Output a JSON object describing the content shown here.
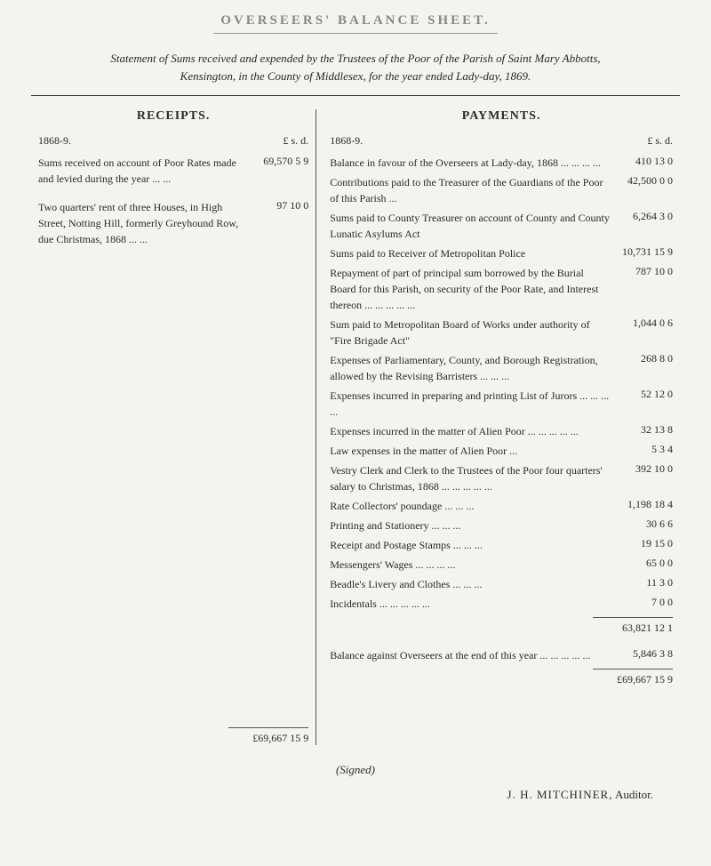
{
  "document": {
    "title": "OVERSEERS' BALANCE SHEET.",
    "statement_line1": "Statement of Sums received and expended by the Trustees of the Poor of the Parish of Saint Mary Abbotts,",
    "statement_line2": "Kensington, in the County of Middlesex, for the year ended Lady-day, 1869."
  },
  "receipts": {
    "title": "RECEIPTS.",
    "year": "1868-9.",
    "currency": "£ s. d.",
    "items": [
      {
        "label": "Sums received on account of Poor Rates made and levied during the year    ...    ...",
        "amount": "69,570  5  9"
      },
      {
        "label": "Two quarters' rent of three Houses, in High Street, Notting Hill, formerly Greyhound Row, due Christmas, 1868    ...    ...",
        "amount": "97 10  0"
      }
    ],
    "total": "£69,667 15  9"
  },
  "payments": {
    "title": "PAYMENTS.",
    "year": "1868-9.",
    "currency": "£ s. d.",
    "items": [
      {
        "label": "Balance in favour of the Overseers at Lady-day, 1868    ...    ...    ...    ...",
        "amount": "410 13  0"
      },
      {
        "label": "Contributions paid to the Treasurer of the Guardians of the Poor of this Parish ...",
        "amount": "42,500  0  0"
      },
      {
        "label": "Sums paid to County Treasurer on account of County and County Lunatic Asylums Act",
        "amount": "6,264  3  0"
      },
      {
        "label": "Sums paid to Receiver of Metropolitan Police",
        "amount": "10,731 15  9"
      },
      {
        "label": "Repayment of part of principal sum borrowed by the Burial Board for this Parish, on security of the Poor Rate, and Interest thereon    ...    ...    ...    ...    ...",
        "amount": "787 10  0"
      },
      {
        "label": "Sum paid to Metropolitan Board of Works under authority of \"Fire Brigade Act\"",
        "amount": "1,044  0  6"
      },
      {
        "label": "Expenses of Parliamentary, County, and Borough Registration, allowed by the Revising Barristers    ...    ...    ...",
        "amount": "268  8  0"
      },
      {
        "label": "Expenses incurred in preparing and printing List of Jurors    ...    ...    ...    ...",
        "amount": "52 12  0"
      },
      {
        "label": "Expenses incurred in the matter of Alien Poor    ...    ...    ...    ...    ...",
        "amount": "32 13  8"
      },
      {
        "label": "Law expenses in the matter of Alien Poor ...",
        "amount": "5  3  4"
      },
      {
        "label": "Vestry Clerk and Clerk to the Trustees of the Poor four quarters' salary to Christmas, 1868    ...    ...    ...    ...    ...",
        "amount": "392 10  0"
      },
      {
        "label": "Rate Collectors' poundage    ...    ...    ...",
        "amount": "1,198 18  4"
      },
      {
        "label": "Printing and Stationery    ...    ...    ...",
        "amount": "30  6  6"
      },
      {
        "label": "Receipt and Postage Stamps ...    ...    ...",
        "amount": "19 15  0"
      },
      {
        "label": "Messengers' Wages    ...    ...    ...    ...",
        "amount": "65  0  0"
      },
      {
        "label": "Beadle's Livery and Clothes ...    ...    ...",
        "amount": "11  3  0"
      },
      {
        "label": "Incidentals    ...    ...    ...    ...    ...",
        "amount": "7  0  0"
      }
    ],
    "subtotal": "63,821 12  1",
    "balance_label": "Balance against Overseers at the end of this year    ...    ...    ...    ...    ...",
    "balance_amount": "5,846  3  8",
    "total": "£69,667 15  9"
  },
  "signature": {
    "signed": "(Signed)",
    "name": "J. H. MITCHINER,",
    "title": "Auditor."
  },
  "styling": {
    "background_color": "#f5f3ef",
    "text_color": "#2a2a2a",
    "title_color": "#888",
    "divider_color": "#333",
    "font_family": "Times New Roman, Georgia, serif",
    "body_font_size": 12,
    "title_font_size": 15
  }
}
